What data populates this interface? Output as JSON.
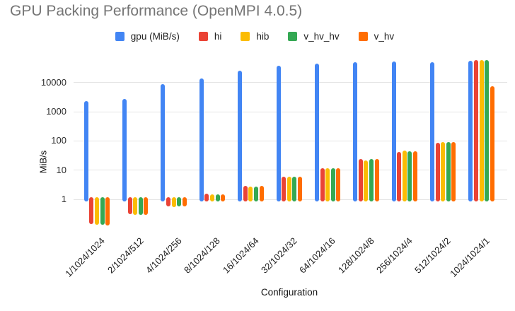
{
  "title": "GPU Packing Performance (OpenMPI 4.0.5)",
  "chart_data": {
    "type": "bar",
    "title": "GPU Packing Performance (OpenMPI 4.0.5)",
    "xlabel": "Configuration",
    "ylabel": "MiB/s",
    "y_scale": "log",
    "y_ticks": [
      1,
      10,
      100,
      1000,
      10000
    ],
    "ylim": [
      0.13,
      55000
    ],
    "grid": true,
    "legend_position": "top-center",
    "categories": [
      "1/1024/1024",
      "2/1024/512",
      "4/1024/256",
      "8/1024/128",
      "16/1024/64",
      "32/1024/32",
      "64/1024/16",
      "128/1024/8",
      "256/1024/4",
      "512/1024/2",
      "1024/1024/1"
    ],
    "series": [
      {
        "name": "gpu (MiB/s)",
        "color": "#4285F4",
        "values": [
          2000,
          2300,
          7500,
          12000,
          21500,
          32000,
          38500,
          41000,
          44000,
          41500,
          46000
        ]
      },
      {
        "name": "hi",
        "color": "#EA4335",
        "values": [
          0.17,
          0.36,
          0.68,
          1.3,
          2.5,
          5.0,
          10,
          20,
          36,
          74,
          51000
        ]
      },
      {
        "name": "hib",
        "color": "#FBBC04",
        "values": [
          0.16,
          0.35,
          0.65,
          1.25,
          2.3,
          4.9,
          9.8,
          18.5,
          39,
          78,
          48500
        ]
      },
      {
        "name": "v_hv_hv",
        "color": "#34A853",
        "values": [
          0.16,
          0.34,
          0.66,
          1.25,
          2.3,
          4.9,
          10,
          20,
          38,
          76,
          50500
        ]
      },
      {
        "name": "v_hv",
        "color": "#FF6D01",
        "values": [
          0.15,
          0.35,
          0.68,
          1.25,
          2.4,
          5.0,
          9.8,
          20.5,
          38,
          77,
          6300
        ]
      }
    ]
  }
}
